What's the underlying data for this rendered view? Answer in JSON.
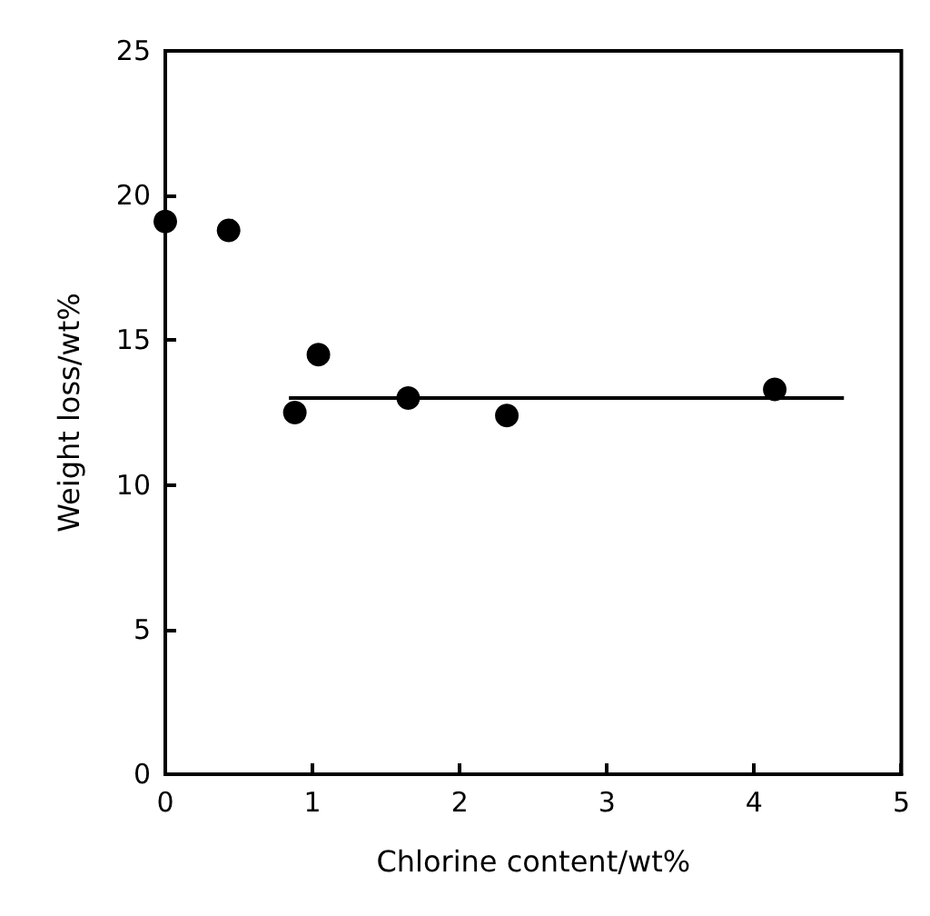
{
  "chart_data": {
    "type": "scatter",
    "xlabel": "Chlorine content/wt%",
    "ylabel": "Weight loss/wt%",
    "xlim": [
      0,
      5
    ],
    "xticks": [
      0,
      1,
      2,
      3,
      4,
      5
    ],
    "ylim": [
      0,
      25
    ],
    "yticks": [
      0,
      5,
      10,
      15,
      20,
      25
    ],
    "grid": false,
    "marker": "circle",
    "series": [
      {
        "color": "#000000",
        "x": [
          0.0,
          0.43,
          0.88,
          1.04,
          1.65,
          2.32,
          4.14
        ],
        "values": [
          19.1,
          18.8,
          12.5,
          14.5,
          13.0,
          12.4,
          13.3
        ]
      },
      {
        "type": "line",
        "color": "#000000",
        "marker": "none",
        "line_style": "solid",
        "x": [
          0.84,
          4.61
        ],
        "values": [
          13.0,
          13.0
        ]
      }
    ]
  }
}
